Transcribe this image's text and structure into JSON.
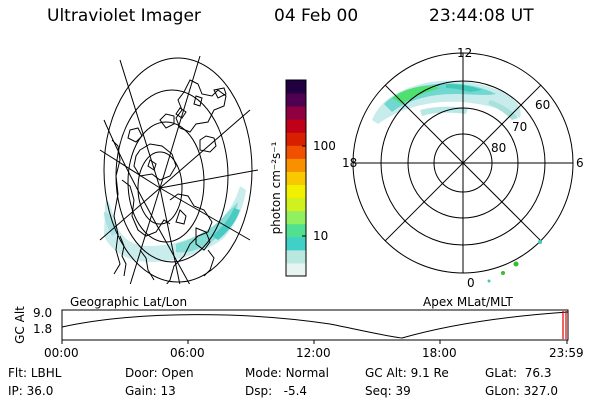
{
  "header": {
    "instrument": "Ultraviolet Imager",
    "date": "04 Feb 00",
    "time": "23:44:08 UT"
  },
  "colorbar": {
    "label": "photon cm⁻²s⁻¹",
    "ticks": [
      "100",
      "10"
    ],
    "colors": [
      "#e8f4f0",
      "#b8e8e0",
      "#40d0c8",
      "#50e090",
      "#90f060",
      "#d0f020",
      "#f0f000",
      "#f8c800",
      "#f89000",
      "#f05000",
      "#d82000",
      "#c00018",
      "#900040",
      "#500050",
      "#200040"
    ]
  },
  "geo_map": {
    "caption": "Geographic Lat/Lon",
    "grid_color": "#000000",
    "coastline_color": "#000000",
    "aurora_colors": [
      "#c8ecec",
      "#80dcd4",
      "#40c8c0"
    ]
  },
  "polar_map": {
    "caption": "Apex MLat/MLT",
    "mlt_labels": {
      "top": "12",
      "left": "18",
      "right": "6",
      "bottom": "0"
    },
    "mlat_labels": [
      "60",
      "70",
      "80"
    ],
    "aurora_colors": [
      "#c8ecec",
      "#70d8d0",
      "#40c8b8",
      "#50e070"
    ]
  },
  "timeline": {
    "ylabel": "GC Alt",
    "yticks": [
      "9.0",
      "1.8"
    ],
    "xticks": [
      "00:00",
      "06:00",
      "12:00",
      "18:00",
      "23:59"
    ],
    "marker_color": "#e00000"
  },
  "info": {
    "flt": {
      "label": "Flt:",
      "value": "LBHL"
    },
    "ip": {
      "label": "IP:",
      "value": "36.0"
    },
    "door": {
      "label": "Door:",
      "value": "Open"
    },
    "gain": {
      "label": "Gain:",
      "value": "13"
    },
    "mode": {
      "label": "Mode:",
      "value": "Normal"
    },
    "dsp": {
      "label": "Dsp:",
      "value": "-5.4"
    },
    "gcalt": {
      "label": "GC Alt:",
      "value": "9.1 Re"
    },
    "seq": {
      "label": "Seq:",
      "value": "39"
    },
    "glat": {
      "label": "GLat:",
      "value": "76.3"
    },
    "glon": {
      "label": "GLon:",
      "value": "327.0"
    }
  }
}
